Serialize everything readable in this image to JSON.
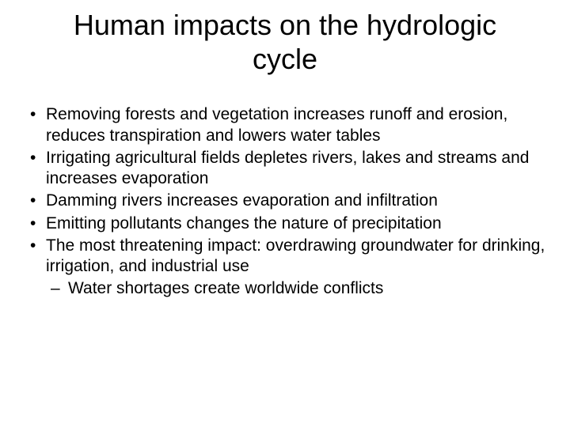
{
  "slide": {
    "title": "Human impacts on the hydrologic cycle",
    "title_fontsize": 36,
    "bullet_fontsize": 21,
    "background_color": "#ffffff",
    "text_color": "#000000",
    "bullets": [
      {
        "text": "Removing forests and vegetation increases runoff and erosion, reduces transpiration and lowers water tables"
      },
      {
        "text": "Irrigating agricultural fields depletes rivers, lakes and streams and increases evaporation"
      },
      {
        "text": "Damming rivers increases evaporation and infiltration"
      },
      {
        "text": "Emitting pollutants changes the nature of precipitation"
      },
      {
        "text": "The most threatening impact: overdrawing groundwater for drinking, irrigation, and industrial use",
        "sub": [
          {
            "text": "Water shortages create worldwide conflicts"
          }
        ]
      }
    ]
  }
}
